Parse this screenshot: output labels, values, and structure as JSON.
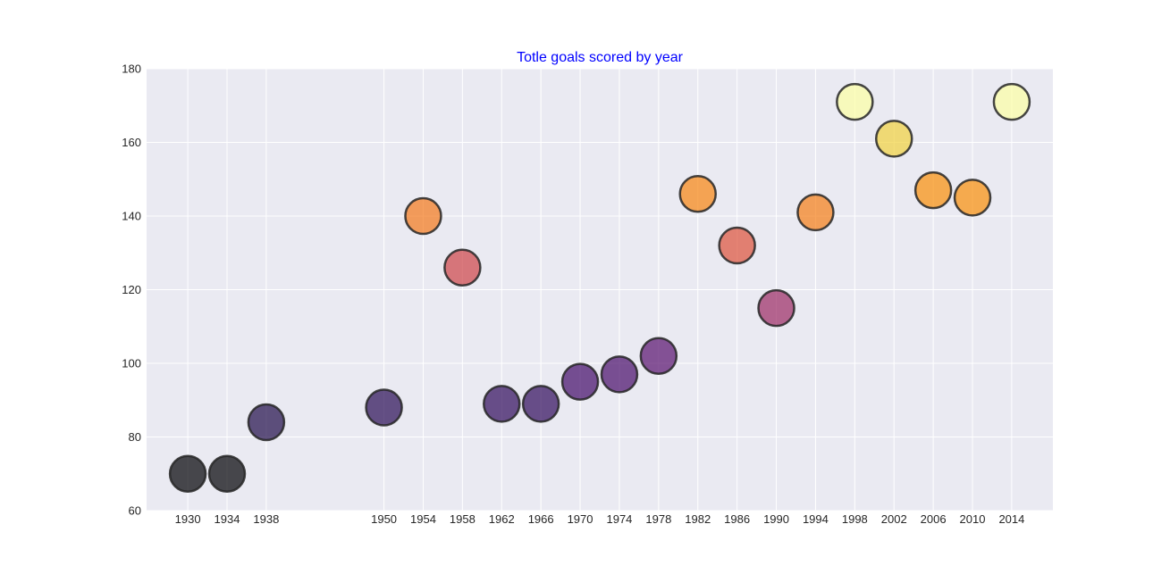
{
  "chart_data": {
    "type": "scatter",
    "title": "Totle goals scored by year",
    "title_color": "#0000ff",
    "xlabel": "",
    "ylabel": "",
    "ylim": [
      60,
      180
    ],
    "xlim": [
      1925.8,
      2018.2
    ],
    "y_ticks": [
      60,
      80,
      100,
      120,
      140,
      160,
      180
    ],
    "x_ticks": [
      1930,
      1934,
      1938,
      1950,
      1954,
      1958,
      1962,
      1966,
      1970,
      1974,
      1978,
      1982,
      1986,
      1990,
      1994,
      1998,
      2002,
      2006,
      2010,
      2014
    ],
    "grid": true,
    "background_color": "#eaeaf2",
    "grid_color": "#ffffff",
    "marker_edge_color": "#262626",
    "colormap": "inferno",
    "points": [
      {
        "x": 1930,
        "y": 70,
        "color": "#000004"
      },
      {
        "x": 1934,
        "y": 70,
        "color": "#000004"
      },
      {
        "x": 1938,
        "y": 84,
        "color": "#1f0c48"
      },
      {
        "x": 1950,
        "y": 88,
        "color": "#280b54"
      },
      {
        "x": 1954,
        "y": 140,
        "color": "#f37819"
      },
      {
        "x": 1958,
        "y": 126,
        "color": "#cd4347"
      },
      {
        "x": 1962,
        "y": 89,
        "color": "#2f0a5b"
      },
      {
        "x": 1966,
        "y": 89,
        "color": "#2f0a5b"
      },
      {
        "x": 1970,
        "y": 95,
        "color": "#420a68"
      },
      {
        "x": 1974,
        "y": 97,
        "color": "#470b6a"
      },
      {
        "x": 1978,
        "y": 102,
        "color": "#57106e"
      },
      {
        "x": 1982,
        "y": 146,
        "color": "#f8850f"
      },
      {
        "x": 1986,
        "y": 132,
        "color": "#dd513a"
      },
      {
        "x": 1990,
        "y": 115,
        "color": "#9b2964"
      },
      {
        "x": 1994,
        "y": 141,
        "color": "#f57d15"
      },
      {
        "x": 1998,
        "y": 171,
        "color": "#fcffa4"
      },
      {
        "x": 2002,
        "y": 161,
        "color": "#f1d23f"
      },
      {
        "x": 2006,
        "y": 147,
        "color": "#f98e09"
      },
      {
        "x": 2010,
        "y": 145,
        "color": "#f98e09"
      },
      {
        "x": 2014,
        "y": 171,
        "color": "#fcffa4"
      }
    ]
  }
}
